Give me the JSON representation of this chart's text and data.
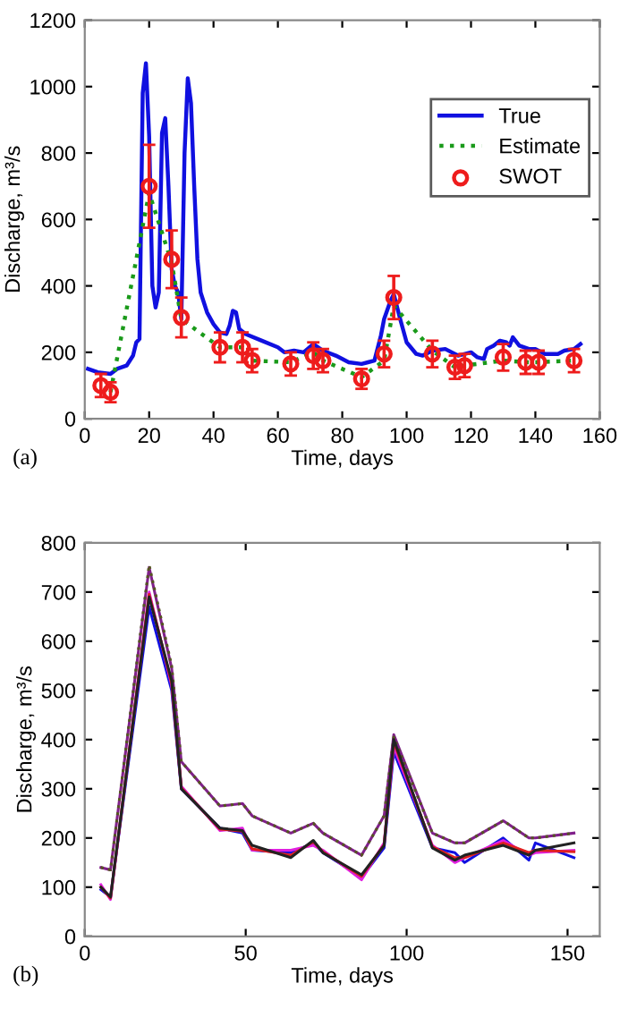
{
  "chart_data": [
    {
      "type": "line",
      "xlabel": "Time, days",
      "ylabel": "Discharge, m³/s",
      "annotations": [
        "(a)"
      ],
      "xlim": [
        0,
        160
      ],
      "xticks": [
        0,
        20,
        40,
        60,
        80,
        100,
        120,
        140,
        160
      ],
      "ylim": [
        0,
        1200
      ],
      "yticks": [
        0,
        200,
        400,
        600,
        800,
        1000,
        1200
      ],
      "grid": false,
      "legend": "right",
      "series": [
        {
          "name": "True",
          "type": "line",
          "color": "#1010e0",
          "line_style": "solid",
          "marker": "none",
          "x": [
            1,
            4,
            8,
            10,
            13,
            15,
            16,
            17,
            18,
            19,
            20,
            21,
            22,
            23,
            24,
            25,
            26,
            27,
            28,
            29,
            30,
            31,
            32,
            33,
            34,
            35,
            36,
            38,
            40,
            42,
            44,
            45,
            46,
            47,
            48,
            50,
            55,
            60,
            62,
            65,
            68,
            71,
            74,
            78,
            82,
            86,
            88,
            90,
            92,
            93,
            95,
            96,
            98,
            100,
            103,
            105,
            108,
            112,
            116,
            120,
            122,
            124,
            125,
            127,
            129,
            131,
            132,
            133,
            135,
            138,
            140,
            143,
            147,
            149,
            152,
            154
          ],
          "values": [
            150,
            140,
            135,
            150,
            160,
            190,
            230,
            240,
            980,
            1070,
            850,
            400,
            335,
            380,
            860,
            905,
            700,
            450,
            400,
            380,
            300,
            800,
            1025,
            950,
            700,
            480,
            380,
            320,
            285,
            260,
            255,
            280,
            325,
            320,
            270,
            255,
            235,
            215,
            200,
            205,
            200,
            225,
            205,
            190,
            170,
            165,
            170,
            175,
            250,
            300,
            355,
            375,
            300,
            230,
            195,
            190,
            205,
            210,
            190,
            200,
            185,
            180,
            210,
            220,
            235,
            230,
            220,
            245,
            220,
            210,
            210,
            195,
            195,
            205,
            210,
            225
          ]
        },
        {
          "name": "Estimate",
          "type": "line",
          "color": "#1a9a1a",
          "line_style": "dotted",
          "marker": "none",
          "x": [
            8,
            20,
            27,
            30,
            42,
            49,
            52,
            64,
            71,
            74,
            86,
            93,
            96,
            108,
            115,
            118,
            130,
            138,
            140,
            152
          ],
          "values": [
            80,
            680,
            470,
            300,
            215,
            215,
            175,
            170,
            200,
            175,
            125,
            175,
            340,
            205,
            155,
            160,
            175,
            170,
            170,
            175
          ]
        },
        {
          "name": "SWOT",
          "type": "scatter",
          "color": "#ee1c1c",
          "marker": "circle",
          "x": [
            5,
            8,
            20,
            27,
            30,
            42,
            49,
            52,
            64,
            71,
            74,
            86,
            93,
            96,
            108,
            115,
            118,
            130,
            137,
            141,
            152
          ],
          "values": [
            100,
            80,
            700,
            480,
            305,
            215,
            215,
            175,
            165,
            190,
            175,
            120,
            195,
            365,
            195,
            155,
            160,
            185,
            170,
            170,
            175
          ],
          "errors": [
            35,
            30,
            125,
            87,
            60,
            45,
            45,
            35,
            35,
            40,
            35,
            30,
            40,
            65,
            40,
            35,
            35,
            40,
            35,
            35,
            35
          ]
        }
      ]
    },
    {
      "type": "line",
      "xlabel": "Time, days",
      "ylabel": "Discharge, m³/s",
      "annotations": [
        "(b)"
      ],
      "xlim": [
        0,
        160
      ],
      "xticks": [
        0,
        50,
        100,
        150
      ],
      "ylim": [
        0,
        800
      ],
      "yticks": [
        0,
        100,
        200,
        300,
        400,
        500,
        600,
        700,
        800
      ],
      "grid": false,
      "legend": false,
      "x": [
        5,
        8,
        20,
        27,
        30,
        42,
        49,
        52,
        64,
        71,
        74,
        86,
        93,
        96,
        108,
        115,
        118,
        130,
        138,
        140,
        152
      ],
      "series": [
        {
          "color": "#1010e0",
          "line_style": "solid",
          "values": [
            95,
            80,
            670,
            500,
            300,
            220,
            210,
            175,
            170,
            190,
            170,
            120,
            180,
            375,
            180,
            170,
            150,
            200,
            155,
            190,
            160
          ]
        },
        {
          "color": "#e020e0",
          "line_style": "solid",
          "values": [
            105,
            75,
            700,
            510,
            305,
            215,
            220,
            175,
            175,
            185,
            175,
            115,
            190,
            385,
            185,
            150,
            160,
            195,
            165,
            170,
            175
          ]
        },
        {
          "color": "#e02020",
          "line_style": "solid",
          "values": [
            100,
            78,
            695,
            515,
            302,
            218,
            214,
            178,
            165,
            192,
            172,
            122,
            186,
            395,
            182,
            160,
            160,
            190,
            170,
            175,
            172
          ]
        },
        {
          "color": "#80208a",
          "line_style": "solid",
          "values": [
            140,
            135,
            750,
            545,
            355,
            265,
            270,
            245,
            210,
            230,
            210,
            165,
            245,
            410,
            210,
            190,
            190,
            235,
            200,
            200,
            210
          ]
        },
        {
          "color": "#555520",
          "line_style": "dotted",
          "values": [
            140,
            135,
            755,
            550,
            355,
            265,
            270,
            245,
            210,
            230,
            210,
            165,
            245,
            405,
            210,
            190,
            190,
            235,
            200,
            200,
            210
          ]
        },
        {
          "color": "#222222",
          "line_style": "solid",
          "values": [
            100,
            80,
            690,
            520,
            300,
            220,
            215,
            185,
            160,
            195,
            170,
            125,
            185,
            400,
            180,
            155,
            165,
            185,
            165,
            175,
            190
          ]
        }
      ]
    }
  ]
}
